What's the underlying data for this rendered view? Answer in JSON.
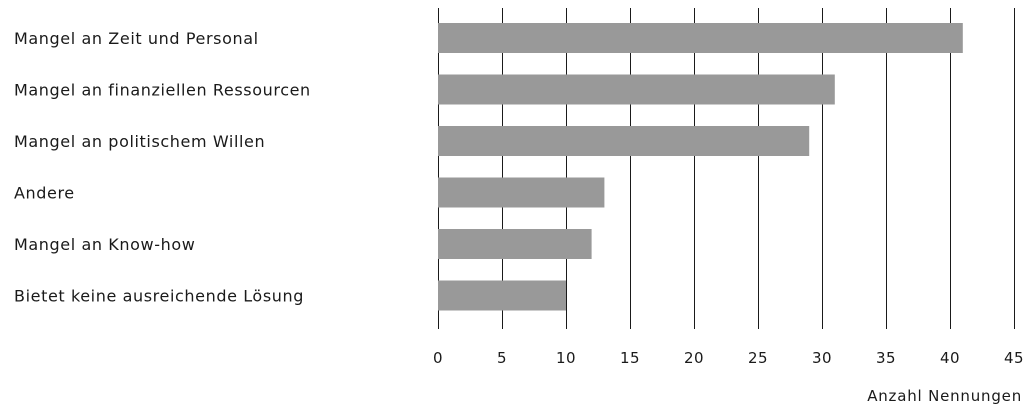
{
  "chart_data": {
    "type": "bar",
    "orientation": "horizontal",
    "categories": [
      "Mangel an Zeit und Personal",
      "Mangel an finanziellen Ressourcen",
      "Mangel an politischem Willen",
      "Andere",
      "Mangel an Know-how",
      "Bietet keine ausreichende Lösung"
    ],
    "values": [
      41,
      31,
      29,
      13,
      12,
      10
    ],
    "xlabel": "Anzahl Nennungen",
    "ylabel": "",
    "title": "",
    "xlim": [
      0,
      45
    ],
    "xticks": [
      0,
      5,
      10,
      15,
      20,
      25,
      30,
      35,
      40,
      45
    ],
    "grid": "vertical",
    "legend": "none",
    "bar_color": "#999999",
    "grid_color": "#1a1a1a"
  }
}
